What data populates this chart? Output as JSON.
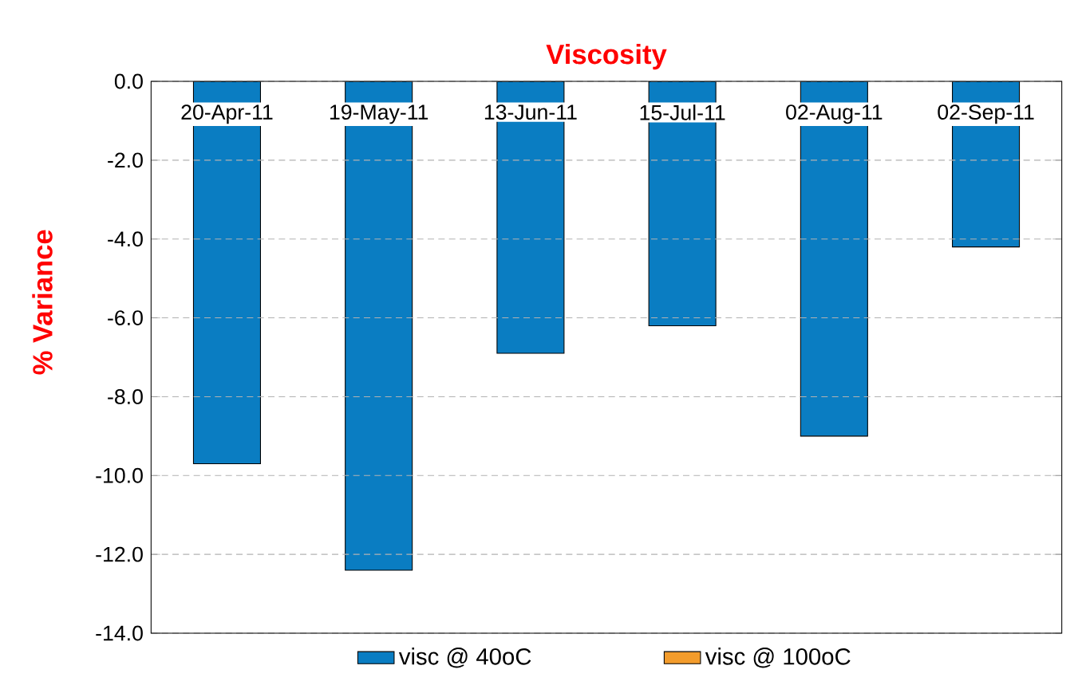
{
  "chart_data": {
    "type": "bar",
    "title": "Viscosity",
    "ylabel": "% Variance",
    "categories": [
      "20-Apr-11",
      "19-May-11",
      "13-Jun-11",
      "15-Jul-11",
      "02-Aug-11",
      "02-Sep-11"
    ],
    "series": [
      {
        "name": "visc @ 40oC",
        "color": "#0a7dc2",
        "values": [
          -9.7,
          -12.4,
          -6.9,
          -6.2,
          -9.0,
          -4.2
        ]
      },
      {
        "name": "visc @ 100oC",
        "color": "#f39c2c",
        "values": [
          null,
          null,
          null,
          null,
          null,
          null
        ]
      }
    ],
    "ylim": [
      -14,
      0
    ],
    "yticks": [
      {
        "value": 0,
        "label": "0.0"
      },
      {
        "value": -2,
        "label": "-2.0"
      },
      {
        "value": -4,
        "label": "-4.0"
      },
      {
        "value": -6,
        "label": "-6.0"
      },
      {
        "value": -8,
        "label": "-8.0"
      },
      {
        "value": -10,
        "label": "-10.0"
      },
      {
        "value": -12,
        "label": "-12.0"
      },
      {
        "value": -14,
        "label": "-14.0"
      }
    ],
    "grid": "y",
    "legend": "bottom"
  }
}
